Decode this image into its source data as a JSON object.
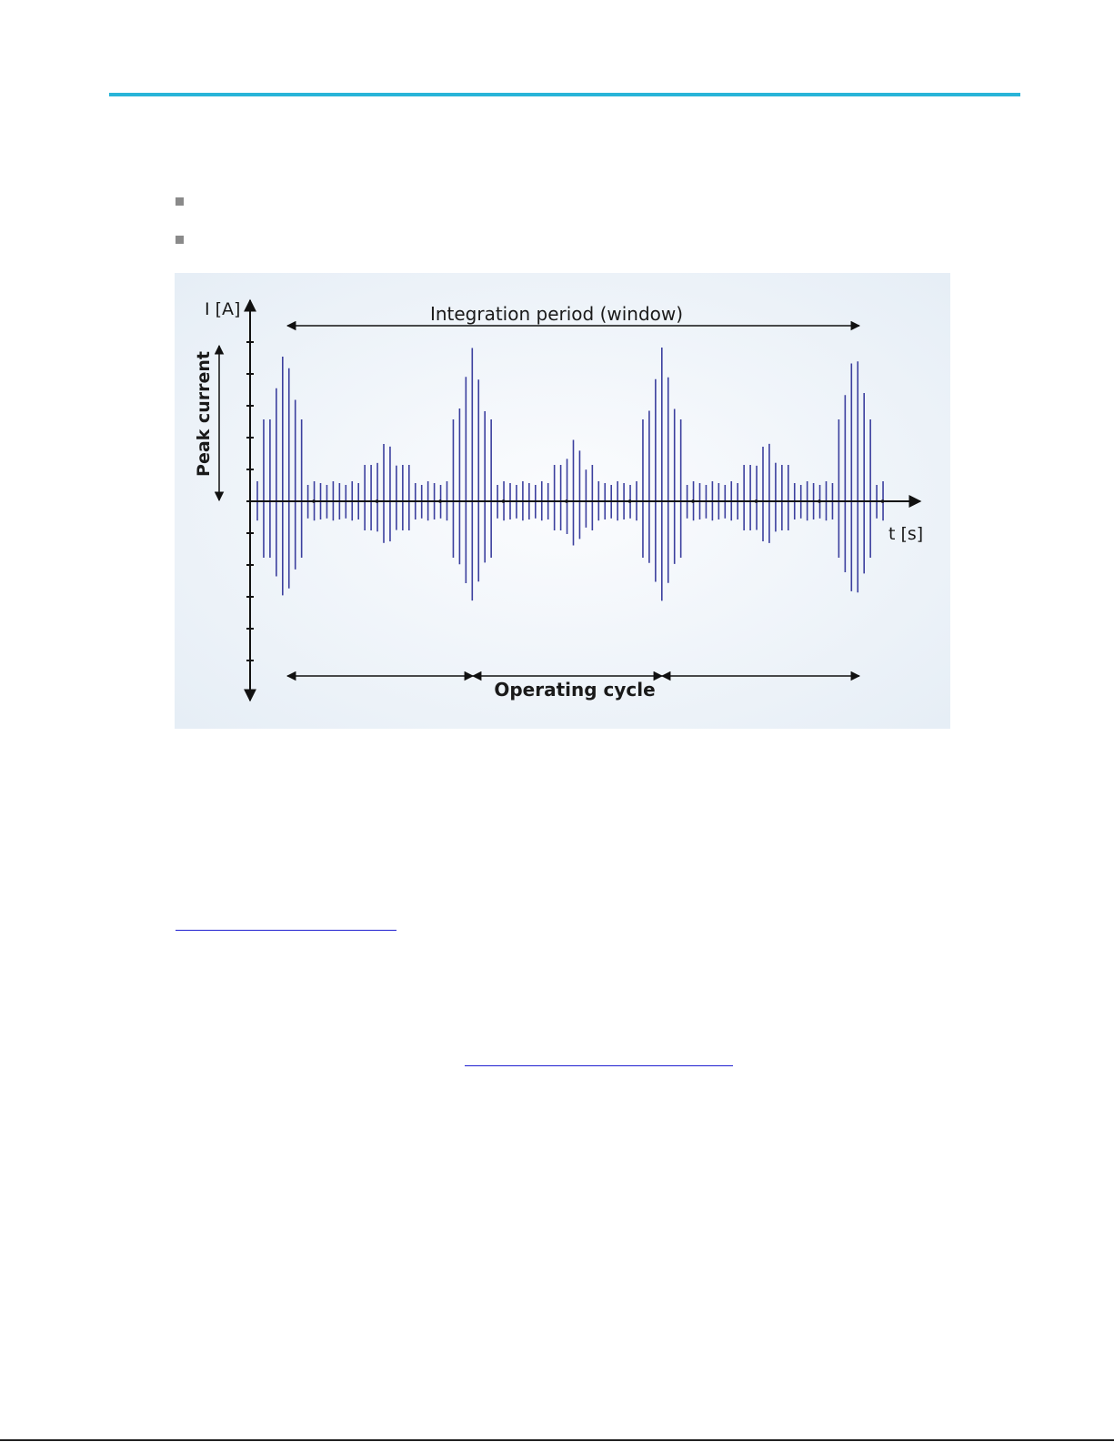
{
  "figure": {
    "y_axis_label": "I [A]",
    "window_label": "Integration period (window)",
    "peak_label": "Peak current",
    "x_axis_label": "t [s]",
    "cycle_label": "Operating cycle"
  }
}
